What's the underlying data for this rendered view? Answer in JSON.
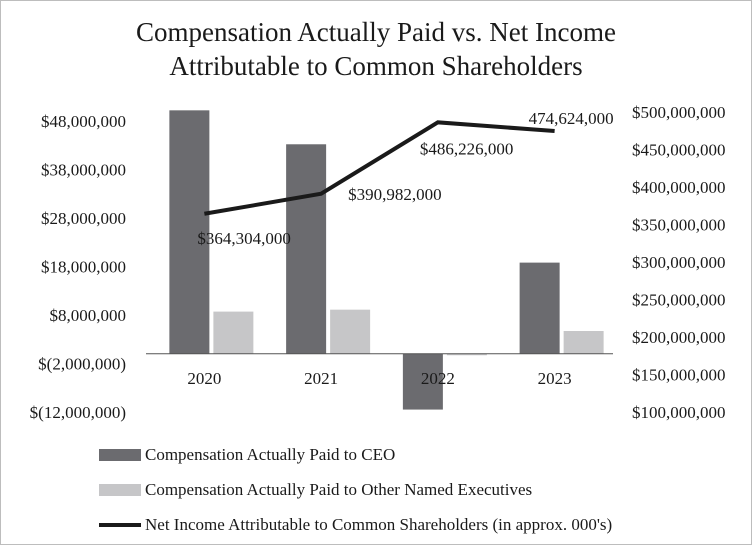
{
  "colors": {
    "ceo_bar": "#6b6b6f",
    "neo_bar": "#c6c6c8",
    "line": "#1a1a1a",
    "axis": "#555555"
  },
  "chart_data": {
    "type": "bar+line",
    "title_lines": [
      "Compensation Actually Paid vs. Net Income",
      "Attributable to Common Shareholders"
    ],
    "categories": [
      "2020",
      "2021",
      "2022",
      "2023"
    ],
    "left_axis": {
      "ylim": [
        -12000000,
        48000000
      ],
      "ticks": [
        48000000,
        38000000,
        28000000,
        18000000,
        8000000,
        -2000000,
        -12000000
      ],
      "tick_labels": [
        "$48,000,000",
        "$38,000,000",
        "$28,000,000",
        "$18,000,000",
        "$8,000,000",
        "$(2,000,000)",
        "$(12,000,000)"
      ]
    },
    "right_axis": {
      "ylim": [
        100000000,
        500000000
      ],
      "ticks": [
        500000000,
        450000000,
        400000000,
        350000000,
        300000000,
        250000000,
        200000000,
        150000000,
        100000000
      ],
      "tick_labels": [
        "$500,000,000",
        "$450,000,000",
        "$400,000,000",
        "$350,000,000",
        "$300,000,000",
        "$250,000,000",
        "$200,000,000",
        "$150,000,000",
        "$100,000,000"
      ]
    },
    "series": [
      {
        "name": "Compensation Actually Paid to CEO",
        "type": "bar",
        "axis": "left",
        "values": [
          50200000,
          43200000,
          -11500000,
          18800000
        ]
      },
      {
        "name": "Compensation Actually Paid to Other Named Executives",
        "type": "bar",
        "axis": "left",
        "values": [
          8700000,
          9100000,
          -300000,
          4700000
        ]
      },
      {
        "name": "Net Income Attributable to Common Shareholders (in approx. 000's)",
        "type": "line",
        "axis": "right",
        "values": [
          364304000,
          390982000,
          486226000,
          474624000
        ],
        "data_labels": [
          "$364,304,000",
          "$390,982,000",
          "$486,226,000",
          "474,624,000"
        ]
      }
    ]
  }
}
